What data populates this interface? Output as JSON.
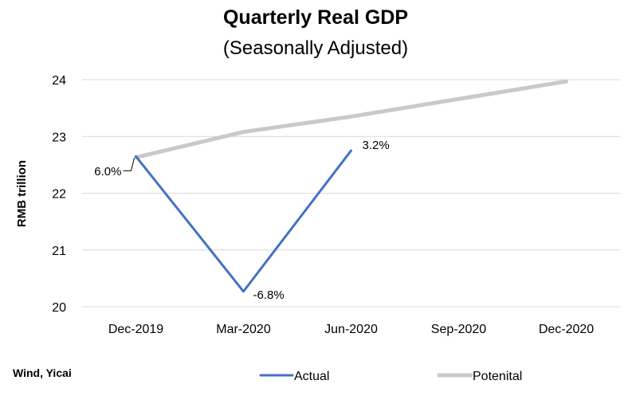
{
  "chart_data": {
    "type": "line",
    "title": "Quarterly Real GDP",
    "subtitle": "(Seasonally Adjusted)",
    "ylabel": "RMB trillion",
    "xlabel": "",
    "categories": [
      "Dec-2019",
      "Mar-2020",
      "Jun-2020",
      "Sep-2020",
      "Dec-2020"
    ],
    "ylim": [
      20,
      24
    ],
    "yticks": [
      20,
      21,
      22,
      23,
      24
    ],
    "grid": true,
    "legend_position": "bottom",
    "series": [
      {
        "name": "Actual",
        "color": "#4472C4",
        "values": [
          22.65,
          20.27,
          22.75,
          null,
          null
        ],
        "labels": [
          "6.0%",
          "-6.8%",
          "3.2%",
          null,
          null
        ]
      },
      {
        "name": "Potenital",
        "color": "#C9C9C9",
        "values": [
          22.63,
          23.08,
          23.35,
          23.66,
          23.97
        ],
        "labels": [
          null,
          null,
          null,
          null,
          null
        ]
      }
    ],
    "source": "Wind, Yicai"
  }
}
